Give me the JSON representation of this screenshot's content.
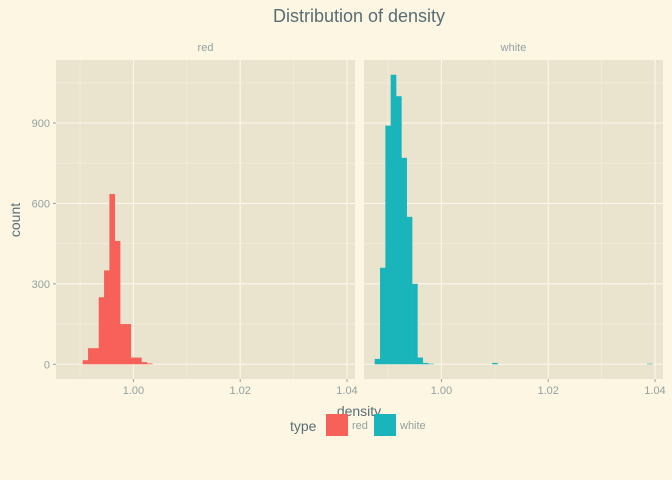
{
  "chart_data": {
    "type": "bar",
    "title": "Distribution of  density",
    "xlabel": "density",
    "ylabel": "count",
    "xlim": [
      0.9855,
      1.0415
    ],
    "ylim": [
      -55,
      1135
    ],
    "x_ticks": [
      1.0,
      1.02,
      1.04
    ],
    "x_tick_labels": [
      "1.00",
      "1.02",
      "1.04"
    ],
    "y_ticks": [
      0,
      300,
      600,
      900
    ],
    "y_tick_labels": [
      "0",
      "300",
      "600",
      "900"
    ],
    "bin_width": 0.001,
    "grid": true,
    "legend": {
      "title": "type",
      "position": "bottom",
      "items": [
        {
          "label": "red",
          "color": "#f8605a"
        },
        {
          "label": "white",
          "color": "#19b5bb"
        }
      ]
    },
    "facets": [
      {
        "label": "red",
        "color": "#f8605a",
        "bins": [
          {
            "x": 0.991,
            "count": 15
          },
          {
            "x": 0.992,
            "count": 60
          },
          {
            "x": 0.993,
            "count": 60
          },
          {
            "x": 0.994,
            "count": 250
          },
          {
            "x": 0.995,
            "count": 350
          },
          {
            "x": 0.996,
            "count": 635
          },
          {
            "x": 0.997,
            "count": 460
          },
          {
            "x": 0.998,
            "count": 150
          },
          {
            "x": 0.999,
            "count": 150
          },
          {
            "x": 1.0,
            "count": 25
          },
          {
            "x": 1.001,
            "count": 25
          },
          {
            "x": 1.002,
            "count": 8
          },
          {
            "x": 1.003,
            "count": 3
          }
        ]
      },
      {
        "label": "white",
        "color": "#19b5bb",
        "bins": [
          {
            "x": 0.988,
            "count": 20
          },
          {
            "x": 0.989,
            "count": 360
          },
          {
            "x": 0.99,
            "count": 890
          },
          {
            "x": 0.991,
            "count": 1080
          },
          {
            "x": 0.992,
            "count": 1000
          },
          {
            "x": 0.993,
            "count": 770
          },
          {
            "x": 0.994,
            "count": 550
          },
          {
            "x": 0.995,
            "count": 300
          },
          {
            "x": 0.996,
            "count": 25
          },
          {
            "x": 0.997,
            "count": 5
          },
          {
            "x": 0.998,
            "count": 2
          },
          {
            "x": 1.01,
            "count": 5
          },
          {
            "x": 1.039,
            "count": 2
          }
        ]
      }
    ]
  }
}
